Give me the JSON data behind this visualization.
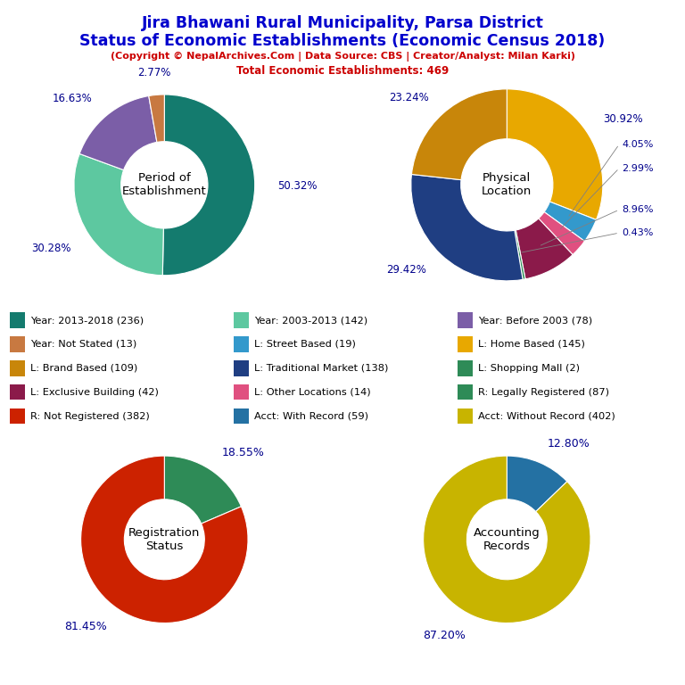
{
  "title_line1": "Jira Bhawani Rural Municipality, Parsa District",
  "title_line2": "Status of Economic Establishments (Economic Census 2018)",
  "subtitle": "(Copyright © NepalArchives.Com | Data Source: CBS | Creator/Analyst: Milan Karki)",
  "total_line": "Total Economic Establishments: 469",
  "pie1_label": "Period of\nEstablishment",
  "pie1_values": [
    50.32,
    30.28,
    16.63,
    2.77
  ],
  "pie1_colors": [
    "#147B6E",
    "#5DC8A0",
    "#7B5EA7",
    "#C87941"
  ],
  "pie1_pct_labels": [
    "50.32%",
    "30.28%",
    "16.63%",
    "2.77%"
  ],
  "pie1_startangle": 90,
  "pie2_label": "Physical\nLocation",
  "pie2_values": [
    30.92,
    4.05,
    2.99,
    8.96,
    0.43,
    29.42,
    23.24
  ],
  "pie2_colors": [
    "#E8A800",
    "#3399CC",
    "#E05080",
    "#8B1A4A",
    "#2E8B57",
    "#1F3E82",
    "#C8860A"
  ],
  "pie2_pct_labels": [
    "30.92%",
    "4.05%",
    "2.99%",
    "8.96%",
    "0.43%",
    "29.42%",
    "23.24%"
  ],
  "pie2_startangle": 90,
  "pie3_label": "Registration\nStatus",
  "pie3_values": [
    18.55,
    81.45
  ],
  "pie3_colors": [
    "#2E8B57",
    "#CC2200"
  ],
  "pie3_pct_labels": [
    "18.55%",
    "81.45%"
  ],
  "pie3_startangle": 90,
  "pie4_label": "Accounting\nRecords",
  "pie4_values": [
    12.8,
    87.2
  ],
  "pie4_colors": [
    "#2471A3",
    "#C8B400"
  ],
  "pie4_pct_labels": [
    "12.80%",
    "87.20%"
  ],
  "pie4_startangle": 90,
  "legend_items": [
    {
      "label": "Year: 2013-2018 (236)",
      "color": "#147B6E"
    },
    {
      "label": "Year: 2003-2013 (142)",
      "color": "#5DC8A0"
    },
    {
      "label": "Year: Before 2003 (78)",
      "color": "#7B5EA7"
    },
    {
      "label": "Year: Not Stated (13)",
      "color": "#C87941"
    },
    {
      "label": "L: Street Based (19)",
      "color": "#3399CC"
    },
    {
      "label": "L: Home Based (145)",
      "color": "#E8A800"
    },
    {
      "label": "L: Brand Based (109)",
      "color": "#C8860A"
    },
    {
      "label": "L: Traditional Market (138)",
      "color": "#1F3E82"
    },
    {
      "label": "L: Shopping Mall (2)",
      "color": "#2E8B57"
    },
    {
      "label": "L: Exclusive Building (42)",
      "color": "#8B1A4A"
    },
    {
      "label": "L: Other Locations (14)",
      "color": "#E05080"
    },
    {
      "label": "R: Legally Registered (87)",
      "color": "#2E8B57"
    },
    {
      "label": "R: Not Registered (382)",
      "color": "#CC2200"
    },
    {
      "label": "Acct: With Record (59)",
      "color": "#2471A3"
    },
    {
      "label": "Acct: Without Record (402)",
      "color": "#C8B400"
    }
  ],
  "title_color": "#0000CD",
  "subtitle_color": "#CC0000",
  "pct_label_color": "#00008B",
  "bg_color": "#FFFFFF"
}
